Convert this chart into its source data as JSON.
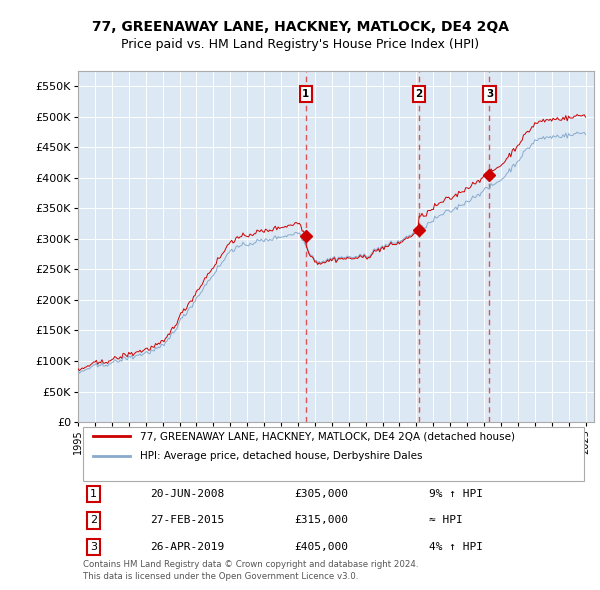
{
  "title": "77, GREENAWAY LANE, HACKNEY, MATLOCK, DE4 2QA",
  "subtitle": "Price paid vs. HM Land Registry's House Price Index (HPI)",
  "ylabel_ticks": [
    "£0",
    "£50K",
    "£100K",
    "£150K",
    "£200K",
    "£250K",
    "£300K",
    "£350K",
    "£400K",
    "£450K",
    "£500K",
    "£550K"
  ],
  "ylim": [
    0,
    575000
  ],
  "xlim_start": 1995.0,
  "xlim_end": 2025.5,
  "plot_bg_color": "#dce9f5",
  "grid_color": "#c8d8e8",
  "sale_dates": [
    2008.47,
    2015.16,
    2019.32
  ],
  "sale_prices": [
    305000,
    315000,
    405000
  ],
  "sale_labels": [
    "1",
    "2",
    "3"
  ],
  "sale_info": [
    {
      "num": "1",
      "date": "20-JUN-2008",
      "price": "£305,000",
      "relation": "9% ↑ HPI"
    },
    {
      "num": "2",
      "date": "27-FEB-2015",
      "price": "£315,000",
      "relation": "≈ HPI"
    },
    {
      "num": "3",
      "date": "26-APR-2019",
      "price": "£405,000",
      "relation": "4% ↑ HPI"
    }
  ],
  "legend_line1": "77, GREENAWAY LANE, HACKNEY, MATLOCK, DE4 2QA (detached house)",
  "legend_line2": "HPI: Average price, detached house, Derbyshire Dales",
  "footer1": "Contains HM Land Registry data © Crown copyright and database right 2024.",
  "footer2": "This data is licensed under the Open Government Licence v3.0.",
  "red_color": "#cc0000",
  "blue_color": "#88aacc",
  "dashed_color": "#dd4444"
}
